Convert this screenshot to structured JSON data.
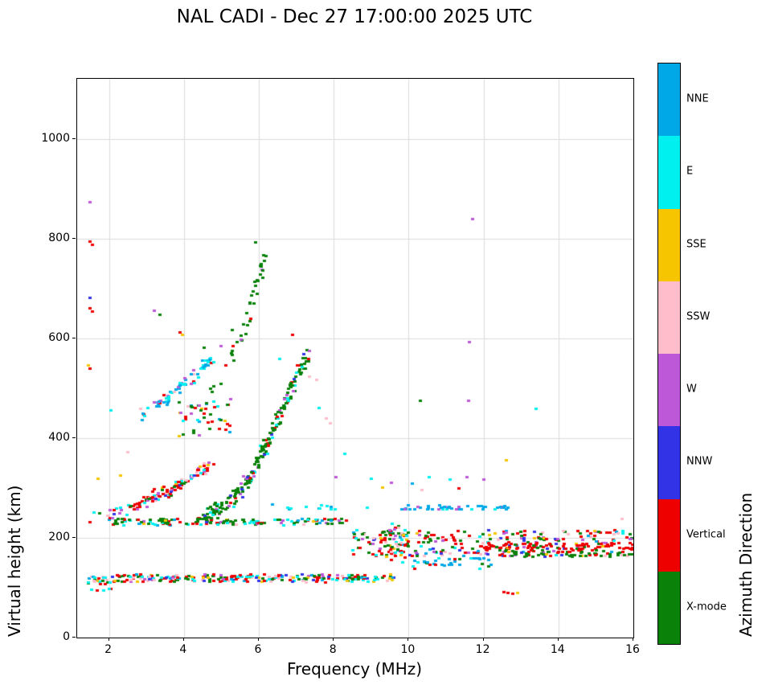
{
  "title": "NAL CADI - Dec 27 17:00:00 2025 UTC",
  "chart_data": {
    "type": "scatter",
    "title": "NAL CADI - Dec 27 17:00:00 2025 UTC",
    "xlabel": "Frequency (MHz)",
    "ylabel": "Virtual height (km)",
    "colorbar_label": "Azimuth Direction",
    "xlim": [
      1.15,
      16
    ],
    "ylim": [
      0,
      1121
    ],
    "x_ticks": [
      2,
      4,
      6,
      8,
      10,
      12,
      14,
      16
    ],
    "y_ticks": [
      0,
      200,
      400,
      600,
      800,
      1000
    ],
    "grid": true,
    "legend_position": "right-colorbar",
    "categories": [
      {
        "label": "NNE",
        "color": "#00A8E8"
      },
      {
        "label": "E",
        "color": "#00F0F0"
      },
      {
        "label": "SSE",
        "color": "#F6C500"
      },
      {
        "label": "SSW",
        "color": "#FFBCCB"
      },
      {
        "label": "W",
        "color": "#BD58D8"
      },
      {
        "label": "NNW",
        "color": "#3232E6"
      },
      {
        "label": "Vertical",
        "color": "#EE0000"
      },
      {
        "label": "X-mode",
        "color": "#0A820A"
      }
    ],
    "bands": [
      {
        "name": "e-region-band",
        "f": [
          1.45,
          9.65
        ],
        "h": [
          112,
          127
        ],
        "n": 260,
        "mix": [
          [
            6,
            28
          ],
          [
            7,
            20
          ],
          [
            1,
            14
          ],
          [
            3,
            10
          ],
          [
            4,
            10
          ],
          [
            0,
            6
          ],
          [
            5,
            6
          ],
          [
            2,
            6
          ]
        ]
      },
      {
        "name": "e-region-low",
        "f": [
          1.45,
          2.1
        ],
        "h": [
          94,
          112
        ],
        "n": 12,
        "mix": [
          [
            6,
            50
          ],
          [
            1,
            20
          ],
          [
            7,
            30
          ]
        ]
      },
      {
        "name": "es-230-band",
        "f": [
          2.0,
          8.35
        ],
        "h": [
          226,
          239
        ],
        "n": 150,
        "mix": [
          [
            7,
            45
          ],
          [
            1,
            18
          ],
          [
            6,
            14
          ],
          [
            0,
            8
          ],
          [
            3,
            5
          ],
          [
            2,
            5
          ],
          [
            4,
            5
          ]
        ]
      },
      {
        "name": "nne-260-band",
        "f": [
          9.7,
          12.65
        ],
        "h": [
          257,
          267
        ],
        "n": 45,
        "mix": [
          [
            0,
            78
          ],
          [
            1,
            14
          ],
          [
            4,
            8
          ]
        ]
      },
      {
        "name": "cyan-265-band",
        "f": [
          6.3,
          8.05
        ],
        "h": [
          257,
          270
        ],
        "n": 12,
        "mix": [
          [
            1,
            70
          ],
          [
            0,
            30
          ]
        ]
      },
      {
        "name": "hf-band",
        "f": [
          8.5,
          16.0
        ],
        "h": [
          163,
          216
        ],
        "n": 300,
        "mix": [
          [
            6,
            32
          ],
          [
            7,
            24
          ],
          [
            3,
            9
          ],
          [
            4,
            8
          ],
          [
            1,
            7
          ],
          [
            0,
            6
          ],
          [
            2,
            6
          ],
          [
            5,
            8
          ]
        ]
      },
      {
        "name": "hf-red-line",
        "f": [
          11.9,
          16.0
        ],
        "h": [
          177,
          191
        ],
        "n": 70,
        "mix": [
          [
            6,
            88
          ],
          [
            7,
            12
          ]
        ]
      },
      {
        "name": "hf-green-line",
        "f": [
          12.4,
          16.0
        ],
        "h": [
          163,
          176
        ],
        "n": 45,
        "mix": [
          [
            7,
            85
          ],
          [
            6,
            15
          ]
        ]
      },
      {
        "name": "hf-spread-9.5",
        "f": [
          9.35,
          9.95
        ],
        "h": [
          150,
          232
        ],
        "n": 35,
        "mix": [
          [
            6,
            28
          ],
          [
            7,
            18
          ],
          [
            4,
            15
          ],
          [
            3,
            15
          ],
          [
            1,
            12
          ],
          [
            2,
            12
          ]
        ]
      },
      {
        "name": "hf-nne-150",
        "f": [
          10.0,
          12.35
        ],
        "h": [
          138,
          160
        ],
        "n": 35,
        "mix": [
          [
            0,
            55
          ],
          [
            1,
            18
          ],
          [
            6,
            14
          ],
          [
            7,
            13
          ]
        ]
      },
      {
        "name": "mixed-440",
        "f": [
          3.8,
          5.3
        ],
        "h": [
          400,
          480
        ],
        "n": 45,
        "mix": [
          [
            7,
            25
          ],
          [
            6,
            20
          ],
          [
            0,
            15
          ],
          [
            1,
            12
          ],
          [
            4,
            10
          ],
          [
            3,
            9
          ],
          [
            2,
            9
          ]
        ]
      }
    ],
    "traces": [
      {
        "name": "spread-f-left",
        "path": [
          [
            2.0,
            246
          ],
          [
            2.4,
            255
          ],
          [
            2.8,
            266
          ],
          [
            3.2,
            280
          ],
          [
            3.6,
            296
          ],
          [
            4.0,
            312
          ],
          [
            4.4,
            332
          ],
          [
            4.8,
            352
          ]
        ],
        "spread": 16,
        "n": 120,
        "mix": [
          [
            6,
            40
          ],
          [
            3,
            14
          ],
          [
            4,
            12
          ],
          [
            1,
            9
          ],
          [
            7,
            12
          ],
          [
            5,
            6
          ],
          [
            2,
            7
          ]
        ]
      },
      {
        "name": "f-trace-green",
        "path": [
          [
            4.4,
            238
          ],
          [
            4.8,
            252
          ],
          [
            5.1,
            268
          ],
          [
            5.4,
            288
          ],
          [
            5.7,
            312
          ],
          [
            5.9,
            338
          ],
          [
            6.1,
            368
          ],
          [
            6.3,
            400
          ],
          [
            6.5,
            435
          ],
          [
            6.7,
            472
          ],
          [
            6.9,
            508
          ],
          [
            7.1,
            540
          ],
          [
            7.3,
            565
          ]
        ],
        "spread": 24,
        "n": 210,
        "mix": [
          [
            7,
            74
          ],
          [
            1,
            8
          ],
          [
            6,
            7
          ],
          [
            4,
            6
          ],
          [
            5,
            5
          ]
        ]
      },
      {
        "name": "skyblue-upper-trace",
        "path": [
          [
            2.9,
            450
          ],
          [
            3.3,
            468
          ],
          [
            3.7,
            492
          ],
          [
            4.1,
            516
          ],
          [
            4.5,
            542
          ],
          [
            4.8,
            562
          ]
        ],
        "spread": 18,
        "n": 70,
        "mix": [
          [
            0,
            42
          ],
          [
            1,
            28
          ],
          [
            3,
            10
          ],
          [
            4,
            10
          ],
          [
            6,
            10
          ]
        ]
      },
      {
        "name": "green-top-arc",
        "path": [
          [
            4.6,
            470
          ],
          [
            5.0,
            520
          ],
          [
            5.3,
            568
          ],
          [
            5.6,
            618
          ],
          [
            5.8,
            668
          ],
          [
            6.0,
            718
          ],
          [
            6.2,
            768
          ]
        ],
        "spread": 16,
        "n": 40,
        "mix": [
          [
            7,
            78
          ],
          [
            4,
            12
          ],
          [
            6,
            10
          ]
        ]
      }
    ],
    "points": [
      [
        1.5,
        875,
        4
      ],
      [
        1.5,
        795,
        6
      ],
      [
        1.55,
        788,
        6
      ],
      [
        1.5,
        682,
        5
      ],
      [
        1.5,
        661,
        6
      ],
      [
        1.55,
        655,
        6
      ],
      [
        1.45,
        546,
        2
      ],
      [
        1.5,
        540,
        6
      ],
      [
        2.05,
        456,
        1
      ],
      [
        1.7,
        320,
        2
      ],
      [
        2.3,
        326,
        2
      ],
      [
        2.5,
        372,
        3
      ],
      [
        1.6,
        252,
        1
      ],
      [
        1.75,
        250,
        7
      ],
      [
        1.5,
        232,
        6
      ],
      [
        3.2,
        657,
        4
      ],
      [
        3.35,
        648,
        7
      ],
      [
        3.9,
        613,
        6
      ],
      [
        3.97,
        608,
        2
      ],
      [
        4.55,
        582,
        7
      ],
      [
        5.0,
        586,
        4
      ],
      [
        5.3,
        618,
        7
      ],
      [
        5.52,
        598,
        4
      ],
      [
        5.92,
        793,
        7
      ],
      [
        6.9,
        608,
        6
      ],
      [
        6.55,
        560,
        1
      ],
      [
        7.0,
        532,
        1
      ],
      [
        7.35,
        525,
        3
      ],
      [
        7.55,
        518,
        3
      ],
      [
        7.62,
        462,
        1
      ],
      [
        7.8,
        440,
        3
      ],
      [
        7.92,
        430,
        3
      ],
      [
        8.3,
        370,
        1
      ],
      [
        8.05,
        322,
        4
      ],
      [
        9.0,
        320,
        1
      ],
      [
        9.3,
        302,
        2
      ],
      [
        9.55,
        312,
        4
      ],
      [
        10.1,
        310,
        0
      ],
      [
        10.35,
        296,
        3
      ],
      [
        10.55,
        322,
        1
      ],
      [
        11.1,
        318,
        1
      ],
      [
        11.35,
        300,
        6
      ],
      [
        11.55,
        322,
        4
      ],
      [
        12.0,
        318,
        4
      ],
      [
        11.7,
        840,
        4
      ],
      [
        11.62,
        594,
        4
      ],
      [
        11.6,
        476,
        4
      ],
      [
        10.32,
        476,
        7
      ],
      [
        13.4,
        460,
        1
      ],
      [
        12.62,
        356,
        2
      ],
      [
        8.9,
        262,
        1
      ],
      [
        12.55,
        92,
        6
      ],
      [
        12.66,
        90,
        6
      ],
      [
        12.78,
        88,
        6
      ],
      [
        12.9,
        90,
        2
      ],
      [
        15.7,
        238,
        3
      ],
      [
        12.3,
        210,
        2
      ],
      [
        12.15,
        207,
        2
      ]
    ]
  }
}
